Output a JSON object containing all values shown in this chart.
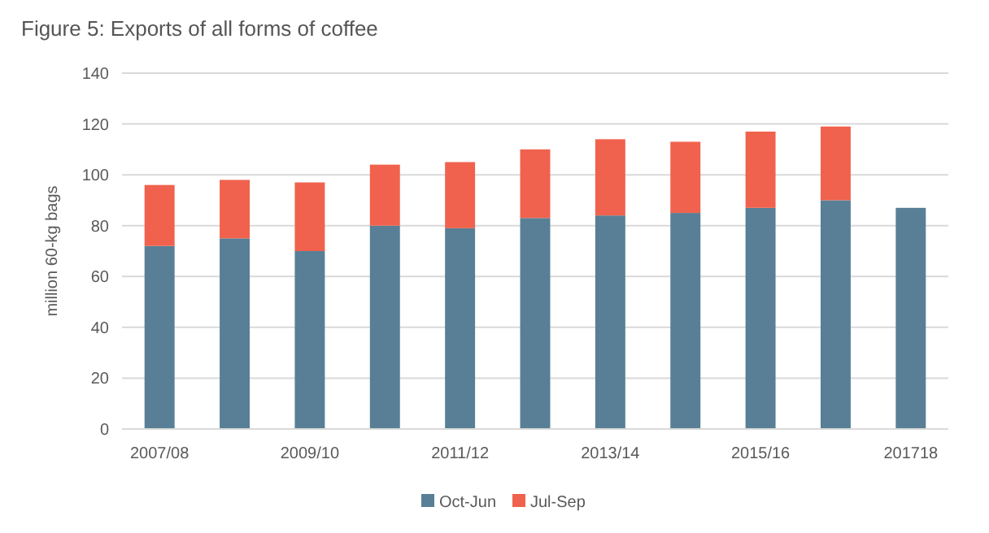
{
  "chart_data": {
    "type": "bar",
    "title": "Figure 5: Exports of all forms of coffee",
    "ylabel": "million 60-kg bags",
    "categories": [
      "2007/08",
      null,
      "2009/10",
      null,
      "2011/12",
      null,
      "2013/14",
      null,
      "2015/16",
      null,
      "201718"
    ],
    "stacked": true,
    "series": [
      {
        "name": "Oct-Jun",
        "color": "#587f96",
        "values": [
          72,
          75,
          70,
          80,
          79,
          83,
          84,
          85,
          87,
          90,
          87
        ]
      },
      {
        "name": "Jul-Sep",
        "color": "#f0624d",
        "values": [
          24,
          23,
          27,
          24,
          26,
          27,
          30,
          28,
          30,
          29,
          null
        ]
      }
    ],
    "ylim": [
      0,
      140
    ],
    "yticks": [
      0,
      20,
      40,
      60,
      80,
      100,
      120,
      140
    ],
    "grid": "y",
    "legend": "bottom"
  }
}
